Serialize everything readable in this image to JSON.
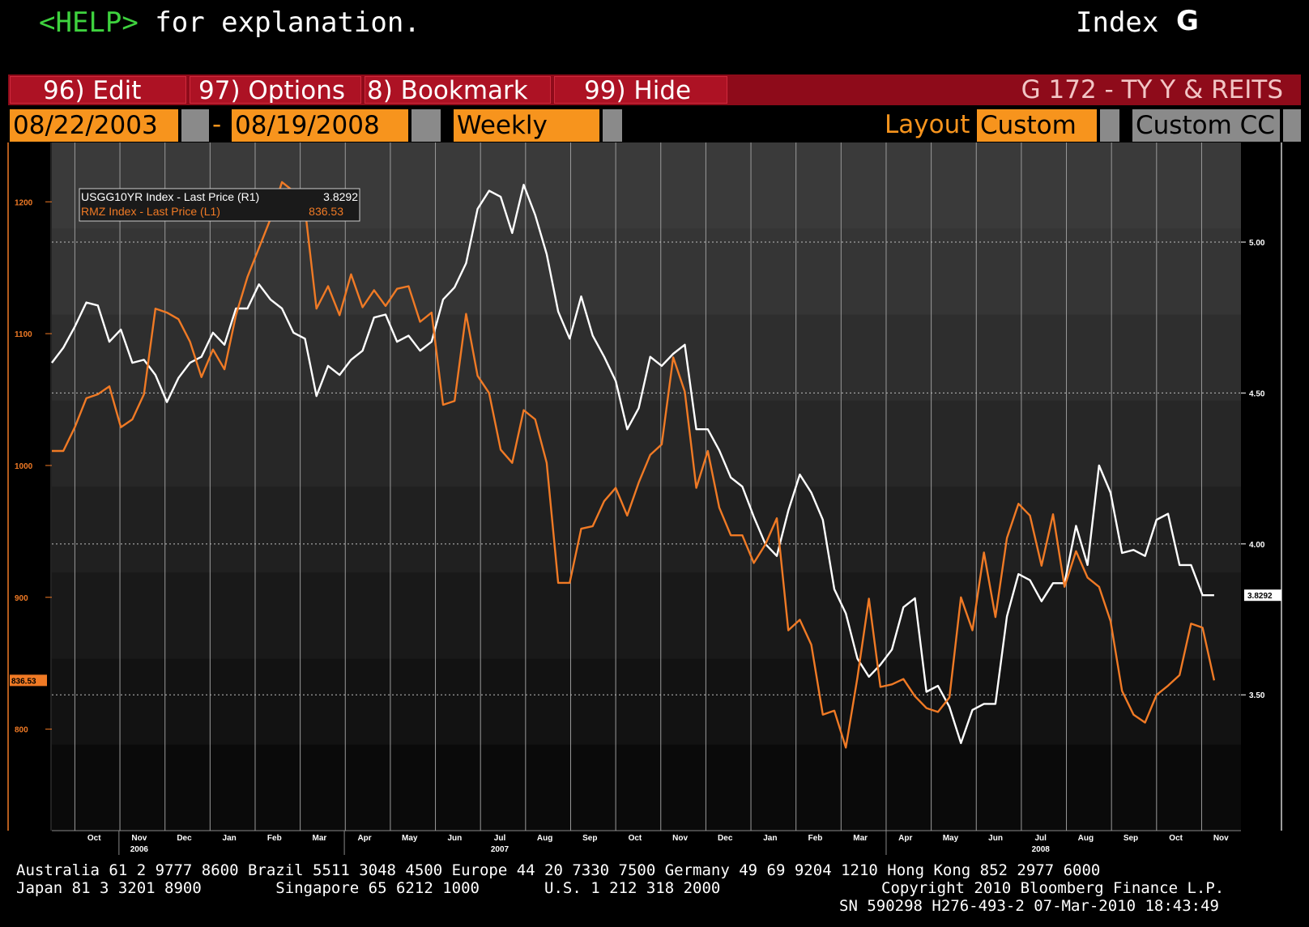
{
  "header": {
    "help_key": "<HELP>",
    "help_rest": " for explanation.",
    "index_label": "Index",
    "index_letter": "G"
  },
  "menu": {
    "items": [
      {
        "label": "96)  Edit"
      },
      {
        "label": "97)  Options"
      },
      {
        "label": "8)  Bookmark"
      },
      {
        "label": "99)  Hide"
      }
    ],
    "title": "G 172 - TY Y & REITS"
  },
  "controls": {
    "start_date": "08/22/2003",
    "dash": "-",
    "end_date": "08/19/2008",
    "frequency": "Weekly",
    "layout_label": "Layout",
    "layout_value": "Custom",
    "custom_cc": "Custom CC"
  },
  "colors": {
    "accent_orange": "#f7941d",
    "menu_red": "#ad1224",
    "help_green": "#3ed23e",
    "series_white": "#ffffff",
    "series_orange": "#f07a25"
  },
  "chart_data": {
    "type": "line",
    "grid": true,
    "legend_placement": "top-left",
    "legend": [
      {
        "label": "USGG10YR Index - Last Price (R1)",
        "value": "3.8292"
      },
      {
        "label": "RMZ Index - Last Price (L1)",
        "value": "836.53"
      }
    ],
    "left_axis": {
      "ticks": [
        "1200",
        "1100",
        "1000",
        "900",
        "800"
      ],
      "range": [
        723,
        1245
      ],
      "current_label": "836.53"
    },
    "right_axis": {
      "ticks": [
        "5.00",
        "4.50",
        "4.00",
        "3.50"
      ],
      "range": [
        3.05,
        5.33
      ],
      "current_label": "3.8292"
    },
    "x_range": [
      0,
      62
    ],
    "months": [
      "Oct",
      "Nov",
      "Dec",
      "Jan",
      "Feb",
      "Mar",
      "Apr",
      "May",
      "Jun",
      "Jul",
      "Aug",
      "Sep",
      "Oct",
      "Nov",
      "Dec",
      "Jan",
      "Feb",
      "Mar",
      "Apr",
      "May",
      "Jun",
      "Jul",
      "Aug",
      "Sep",
      "Oct",
      "Nov"
    ],
    "years": [
      {
        "label": "2006",
        "month_index": 1
      },
      {
        "label": "2007",
        "month_index": 9
      },
      {
        "label": "2008",
        "month_index": 21
      }
    ],
    "series": [
      {
        "name": "USGG10YR Index - Last Price (R1)",
        "axis": "right",
        "color": "#ffffff",
        "values": [
          [
            0.0,
            4.6
          ],
          [
            0.6,
            4.65
          ],
          [
            1.2,
            4.72
          ],
          [
            1.8,
            4.8
          ],
          [
            2.4,
            4.79
          ],
          [
            3.0,
            4.67
          ],
          [
            3.6,
            4.71
          ],
          [
            4.2,
            4.6
          ],
          [
            4.8,
            4.61
          ],
          [
            5.4,
            4.56
          ],
          [
            6.0,
            4.47
          ],
          [
            6.6,
            4.55
          ],
          [
            7.2,
            4.6
          ],
          [
            7.8,
            4.62
          ],
          [
            8.4,
            4.7
          ],
          [
            9.0,
            4.66
          ],
          [
            9.6,
            4.78
          ],
          [
            10.2,
            4.78
          ],
          [
            10.8,
            4.86
          ],
          [
            11.4,
            4.81
          ],
          [
            12.0,
            4.78
          ],
          [
            12.6,
            4.7
          ],
          [
            13.2,
            4.68
          ],
          [
            13.8,
            4.49
          ],
          [
            14.4,
            4.59
          ],
          [
            15.0,
            4.56
          ],
          [
            15.6,
            4.61
          ],
          [
            16.2,
            4.64
          ],
          [
            16.8,
            4.75
          ],
          [
            17.4,
            4.76
          ],
          [
            18.0,
            4.67
          ],
          [
            18.6,
            4.69
          ],
          [
            19.2,
            4.64
          ],
          [
            19.8,
            4.67
          ],
          [
            20.4,
            4.81
          ],
          [
            21.0,
            4.85
          ],
          [
            21.6,
            4.93
          ],
          [
            22.2,
            5.11
          ],
          [
            22.8,
            5.17
          ],
          [
            23.4,
            5.15
          ],
          [
            24.0,
            5.03
          ],
          [
            24.6,
            5.19
          ],
          [
            25.2,
            5.09
          ],
          [
            25.8,
            4.96
          ],
          [
            26.4,
            4.77
          ],
          [
            27.0,
            4.68
          ],
          [
            27.6,
            4.82
          ],
          [
            28.2,
            4.69
          ],
          [
            28.8,
            4.62
          ],
          [
            29.4,
            4.54
          ],
          [
            30.0,
            4.38
          ],
          [
            30.6,
            4.45
          ],
          [
            31.2,
            4.62
          ],
          [
            31.8,
            4.59
          ],
          [
            32.4,
            4.63
          ],
          [
            33.0,
            4.66
          ],
          [
            33.6,
            4.38
          ],
          [
            34.2,
            4.38
          ],
          [
            34.8,
            4.31
          ],
          [
            35.4,
            4.22
          ],
          [
            36.0,
            4.19
          ],
          [
            36.6,
            4.09
          ],
          [
            37.2,
            4.0
          ],
          [
            37.8,
            3.96
          ],
          [
            38.4,
            4.11
          ],
          [
            39.0,
            4.23
          ],
          [
            39.6,
            4.17
          ],
          [
            40.2,
            4.08
          ],
          [
            40.8,
            3.85
          ],
          [
            41.4,
            3.77
          ],
          [
            42.0,
            3.62
          ],
          [
            42.6,
            3.56
          ],
          [
            43.2,
            3.6
          ],
          [
            43.8,
            3.65
          ],
          [
            44.4,
            3.79
          ],
          [
            45.0,
            3.82
          ],
          [
            45.6,
            3.51
          ],
          [
            46.2,
            3.53
          ],
          [
            46.8,
            3.46
          ],
          [
            47.4,
            3.34
          ],
          [
            48.0,
            3.45
          ],
          [
            48.6,
            3.47
          ],
          [
            49.2,
            3.47
          ],
          [
            49.8,
            3.76
          ],
          [
            50.4,
            3.9
          ],
          [
            51.0,
            3.88
          ],
          [
            51.6,
            3.81
          ],
          [
            52.2,
            3.87
          ],
          [
            52.8,
            3.87
          ],
          [
            53.4,
            4.06
          ],
          [
            54.0,
            3.93
          ],
          [
            54.6,
            4.26
          ],
          [
            55.2,
            4.17
          ],
          [
            55.8,
            3.97
          ],
          [
            56.4,
            3.98
          ],
          [
            57.0,
            3.96
          ],
          [
            57.6,
            4.08
          ],
          [
            58.2,
            4.1
          ],
          [
            58.8,
            3.93
          ],
          [
            59.4,
            3.93
          ],
          [
            60.0,
            3.83
          ],
          [
            60.6,
            3.83
          ]
        ]
      },
      {
        "name": "RMZ Index - Last Price (L1)",
        "axis": "left",
        "color": "#f07a25",
        "values": [
          [
            0.0,
            1011
          ],
          [
            0.6,
            1011
          ],
          [
            1.2,
            1029
          ],
          [
            1.8,
            1051
          ],
          [
            2.4,
            1054
          ],
          [
            3.0,
            1060
          ],
          [
            3.6,
            1029
          ],
          [
            4.2,
            1035
          ],
          [
            4.8,
            1054
          ],
          [
            5.4,
            1119
          ],
          [
            6.0,
            1116
          ],
          [
            6.6,
            1111
          ],
          [
            7.2,
            1094
          ],
          [
            7.8,
            1067
          ],
          [
            8.4,
            1088
          ],
          [
            9.0,
            1073
          ],
          [
            9.6,
            1114
          ],
          [
            10.2,
            1143
          ],
          [
            10.8,
            1165
          ],
          [
            11.4,
            1187
          ],
          [
            12.0,
            1215
          ],
          [
            12.6,
            1208
          ],
          [
            13.2,
            1195
          ],
          [
            13.8,
            1119
          ],
          [
            14.4,
            1136
          ],
          [
            15.0,
            1114
          ],
          [
            15.6,
            1145
          ],
          [
            16.2,
            1120
          ],
          [
            16.8,
            1133
          ],
          [
            17.4,
            1121
          ],
          [
            18.0,
            1134
          ],
          [
            18.6,
            1136
          ],
          [
            19.2,
            1109
          ],
          [
            19.8,
            1116
          ],
          [
            20.4,
            1046
          ],
          [
            21.0,
            1049
          ],
          [
            21.6,
            1115
          ],
          [
            22.2,
            1068
          ],
          [
            22.8,
            1055
          ],
          [
            23.4,
            1012
          ],
          [
            24.0,
            1002
          ],
          [
            24.6,
            1042
          ],
          [
            25.2,
            1035
          ],
          [
            25.8,
            1002
          ],
          [
            26.4,
            911
          ],
          [
            27.0,
            911
          ],
          [
            27.6,
            952
          ],
          [
            28.2,
            954
          ],
          [
            28.8,
            973
          ],
          [
            29.4,
            983
          ],
          [
            30.0,
            962
          ],
          [
            30.6,
            987
          ],
          [
            31.2,
            1008
          ],
          [
            31.8,
            1016
          ],
          [
            32.4,
            1082
          ],
          [
            33.0,
            1056
          ],
          [
            33.6,
            983
          ],
          [
            34.2,
            1011
          ],
          [
            34.8,
            968
          ],
          [
            35.4,
            947
          ],
          [
            36.0,
            947
          ],
          [
            36.6,
            926
          ],
          [
            37.2,
            940
          ],
          [
            37.8,
            960
          ],
          [
            38.4,
            875
          ],
          [
            39.0,
            883
          ],
          [
            39.6,
            864
          ],
          [
            40.2,
            811
          ],
          [
            40.8,
            814
          ],
          [
            41.4,
            786
          ],
          [
            42.0,
            839
          ],
          [
            42.6,
            899
          ],
          [
            43.2,
            832
          ],
          [
            43.8,
            834
          ],
          [
            44.4,
            838
          ],
          [
            45.0,
            825
          ],
          [
            45.6,
            816
          ],
          [
            46.2,
            813
          ],
          [
            46.8,
            824
          ],
          [
            47.4,
            900
          ],
          [
            48.0,
            875
          ],
          [
            48.6,
            934
          ],
          [
            49.2,
            885
          ],
          [
            49.8,
            945
          ],
          [
            50.4,
            971
          ],
          [
            51.0,
            962
          ],
          [
            51.6,
            924
          ],
          [
            52.2,
            963
          ],
          [
            52.8,
            908
          ],
          [
            53.4,
            935
          ],
          [
            54.0,
            915
          ],
          [
            54.6,
            908
          ],
          [
            55.2,
            882
          ],
          [
            55.8,
            829
          ],
          [
            56.4,
            811
          ],
          [
            57.0,
            805
          ],
          [
            57.6,
            826
          ],
          [
            58.2,
            833
          ],
          [
            58.8,
            841
          ],
          [
            59.4,
            880
          ],
          [
            60.0,
            877
          ],
          [
            60.6,
            837
          ]
        ]
      }
    ]
  },
  "footer": {
    "line1": "Australia 61 2 9777 8600 Brazil 5511 3048 4500 Europe 44 20 7330 7500 Germany 49 69 9204 1210 Hong Kong 852 2977 6000",
    "line2_left": "Japan 81 3 3201 8900        Singapore 65 6212 1000       U.S. 1 212 318 2000",
    "line2_right": "Copyright 2010 Bloomberg Finance L.P.",
    "line3": "SN 590298 H276-493-2 07-Mar-2010 18:43:49"
  }
}
